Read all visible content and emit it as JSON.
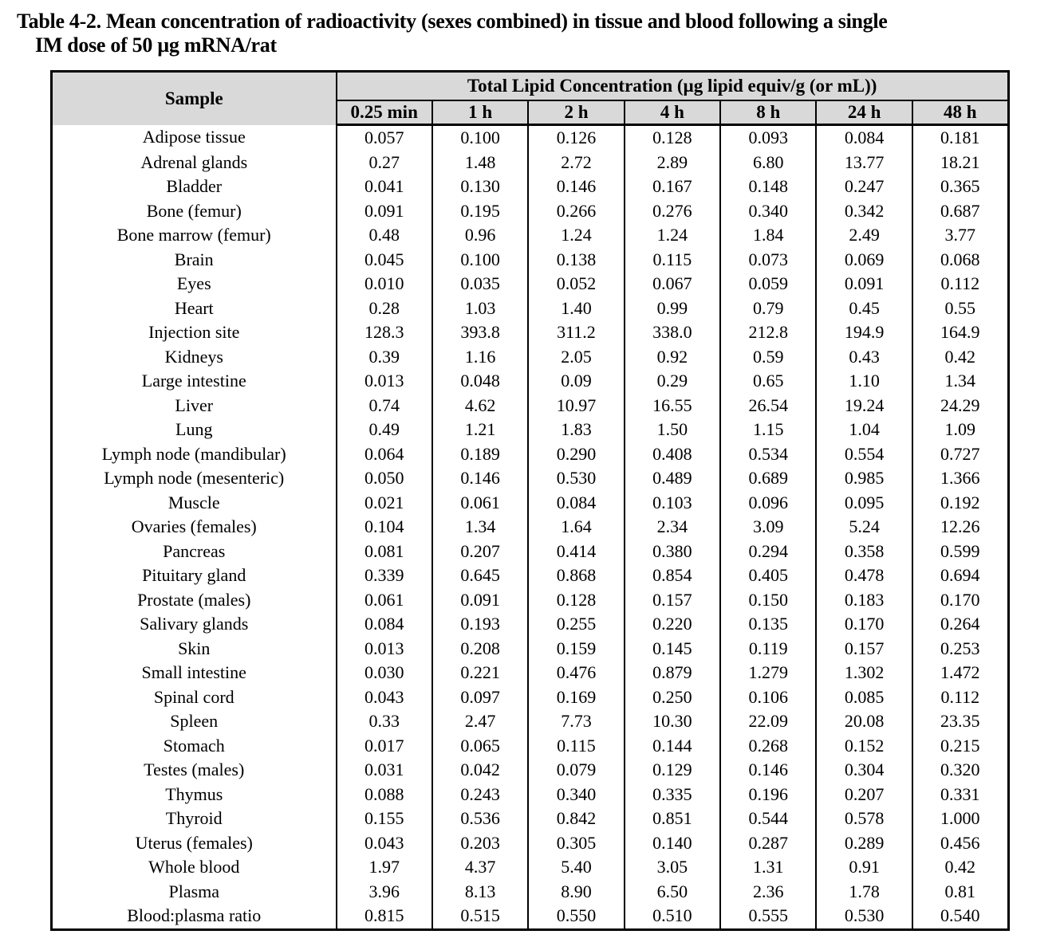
{
  "title": {
    "line1": "Table 4-2. Mean concentration of radioactivity (sexes combined) in tissue and blood following a single",
    "line2": "IM dose of 50 µg mRNA/rat"
  },
  "table": {
    "sample_header": "Sample",
    "group_header": "Total Lipid Concentration (µg lipid equiv/g (or mL))",
    "time_columns": [
      "0.25 min",
      "1 h",
      "2 h",
      "4 h",
      "8 h",
      "24 h",
      "48 h"
    ],
    "rows": [
      {
        "sample": "Adipose tissue",
        "values": [
          "0.057",
          "0.100",
          "0.126",
          "0.128",
          "0.093",
          "0.084",
          "0.181"
        ]
      },
      {
        "sample": "Adrenal glands",
        "values": [
          "0.27",
          "1.48",
          "2.72",
          "2.89",
          "6.80",
          "13.77",
          "18.21"
        ]
      },
      {
        "sample": "Bladder",
        "values": [
          "0.041",
          "0.130",
          "0.146",
          "0.167",
          "0.148",
          "0.247",
          "0.365"
        ]
      },
      {
        "sample": "Bone (femur)",
        "values": [
          "0.091",
          "0.195",
          "0.266",
          "0.276",
          "0.340",
          "0.342",
          "0.687"
        ]
      },
      {
        "sample": "Bone marrow (femur)",
        "values": [
          "0.48",
          "0.96",
          "1.24",
          "1.24",
          "1.84",
          "2.49",
          "3.77"
        ]
      },
      {
        "sample": "Brain",
        "values": [
          "0.045",
          "0.100",
          "0.138",
          "0.115",
          "0.073",
          "0.069",
          "0.068"
        ]
      },
      {
        "sample": "Eyes",
        "values": [
          "0.010",
          "0.035",
          "0.052",
          "0.067",
          "0.059",
          "0.091",
          "0.112"
        ]
      },
      {
        "sample": "Heart",
        "values": [
          "0.28",
          "1.03",
          "1.40",
          "0.99",
          "0.79",
          "0.45",
          "0.55"
        ]
      },
      {
        "sample": "Injection site",
        "values": [
          "128.3",
          "393.8",
          "311.2",
          "338.0",
          "212.8",
          "194.9",
          "164.9"
        ]
      },
      {
        "sample": "Kidneys",
        "values": [
          "0.39",
          "1.16",
          "2.05",
          "0.92",
          "0.59",
          "0.43",
          "0.42"
        ]
      },
      {
        "sample": "Large intestine",
        "values": [
          "0.013",
          "0.048",
          "0.09",
          "0.29",
          "0.65",
          "1.10",
          "1.34"
        ]
      },
      {
        "sample": "Liver",
        "values": [
          "0.74",
          "4.62",
          "10.97",
          "16.55",
          "26.54",
          "19.24",
          "24.29"
        ]
      },
      {
        "sample": "Lung",
        "values": [
          "0.49",
          "1.21",
          "1.83",
          "1.50",
          "1.15",
          "1.04",
          "1.09"
        ]
      },
      {
        "sample": "Lymph node (mandibular)",
        "values": [
          "0.064",
          "0.189",
          "0.290",
          "0.408",
          "0.534",
          "0.554",
          "0.727"
        ]
      },
      {
        "sample": "Lymph node (mesenteric)",
        "values": [
          "0.050",
          "0.146",
          "0.530",
          "0.489",
          "0.689",
          "0.985",
          "1.366"
        ]
      },
      {
        "sample": "Muscle",
        "values": [
          "0.021",
          "0.061",
          "0.084",
          "0.103",
          "0.096",
          "0.095",
          "0.192"
        ]
      },
      {
        "sample": "Ovaries (females)",
        "values": [
          "0.104",
          "1.34",
          "1.64",
          "2.34",
          "3.09",
          "5.24",
          "12.26"
        ]
      },
      {
        "sample": "Pancreas",
        "values": [
          "0.081",
          "0.207",
          "0.414",
          "0.380",
          "0.294",
          "0.358",
          "0.599"
        ]
      },
      {
        "sample": "Pituitary gland",
        "values": [
          "0.339",
          "0.645",
          "0.868",
          "0.854",
          "0.405",
          "0.478",
          "0.694"
        ]
      },
      {
        "sample": "Prostate (males)",
        "values": [
          "0.061",
          "0.091",
          "0.128",
          "0.157",
          "0.150",
          "0.183",
          "0.170"
        ]
      },
      {
        "sample": "Salivary glands",
        "values": [
          "0.084",
          "0.193",
          "0.255",
          "0.220",
          "0.135",
          "0.170",
          "0.264"
        ]
      },
      {
        "sample": "Skin",
        "values": [
          "0.013",
          "0.208",
          "0.159",
          "0.145",
          "0.119",
          "0.157",
          "0.253"
        ]
      },
      {
        "sample": "Small intestine",
        "values": [
          "0.030",
          "0.221",
          "0.476",
          "0.879",
          "1.279",
          "1.302",
          "1.472"
        ]
      },
      {
        "sample": "Spinal cord",
        "values": [
          "0.043",
          "0.097",
          "0.169",
          "0.250",
          "0.106",
          "0.085",
          "0.112"
        ]
      },
      {
        "sample": "Spleen",
        "values": [
          "0.33",
          "2.47",
          "7.73",
          "10.30",
          "22.09",
          "20.08",
          "23.35"
        ]
      },
      {
        "sample": "Stomach",
        "values": [
          "0.017",
          "0.065",
          "0.115",
          "0.144",
          "0.268",
          "0.152",
          "0.215"
        ]
      },
      {
        "sample": "Testes (males)",
        "values": [
          "0.031",
          "0.042",
          "0.079",
          "0.129",
          "0.146",
          "0.304",
          "0.320"
        ]
      },
      {
        "sample": "Thymus",
        "values": [
          "0.088",
          "0.243",
          "0.340",
          "0.335",
          "0.196",
          "0.207",
          "0.331"
        ]
      },
      {
        "sample": "Thyroid",
        "values": [
          "0.155",
          "0.536",
          "0.842",
          "0.851",
          "0.544",
          "0.578",
          "1.000"
        ]
      },
      {
        "sample": "Uterus (females)",
        "values": [
          "0.043",
          "0.203",
          "0.305",
          "0.140",
          "0.287",
          "0.289",
          "0.456"
        ]
      },
      {
        "sample": "Whole blood",
        "values": [
          "1.97",
          "4.37",
          "5.40",
          "3.05",
          "1.31",
          "0.91",
          "0.42"
        ]
      },
      {
        "sample": "Plasma",
        "values": [
          "3.96",
          "8.13",
          "8.90",
          "6.50",
          "2.36",
          "1.78",
          "0.81"
        ]
      },
      {
        "sample": "Blood:plasma ratio",
        "values": [
          "0.815",
          "0.515",
          "0.550",
          "0.510",
          "0.555",
          "0.530",
          "0.540"
        ]
      }
    ]
  },
  "colors": {
    "header_bg": "#d9d9d9",
    "border": "#000000",
    "text": "#000000",
    "page_bg": "#ffffff"
  }
}
